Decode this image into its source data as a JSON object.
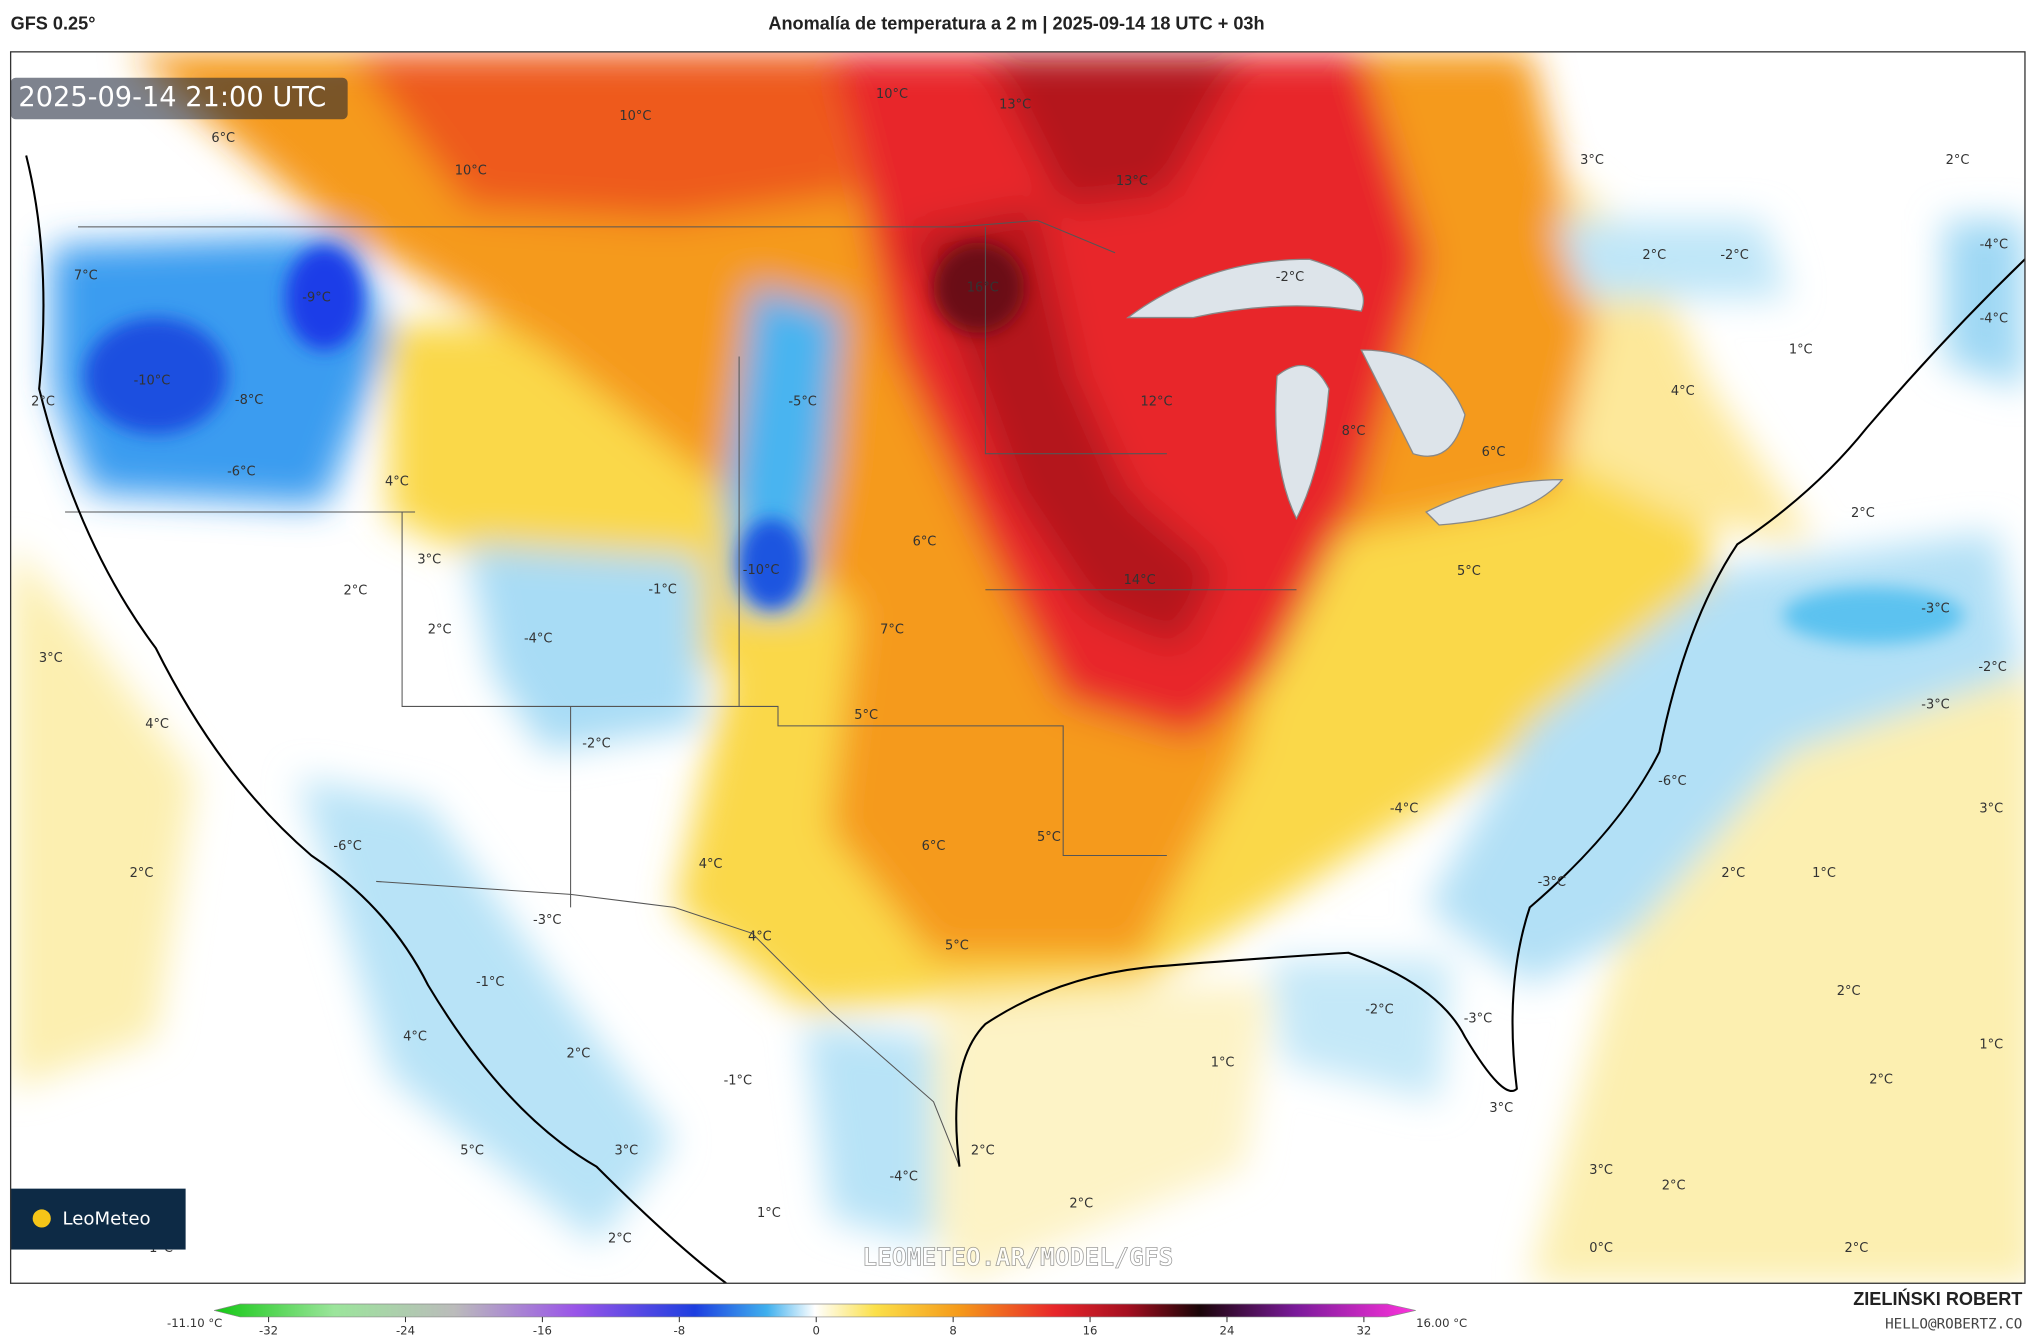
{
  "header": {
    "model": "GFS 0.25°",
    "title": "Anomalía de temperatura a 2 m | 2025-09-14 18 UTC + 03h"
  },
  "map": {
    "timestamp": "2025-09-14 21:00 UTC",
    "logo": "LeoMeteo",
    "watermark": "LEOMETEO.AR/MODEL/GFS",
    "labels": [
      "6°C",
      "10°C",
      "10°C",
      "10°C",
      "13°C",
      "13°C",
      "16°C",
      "-2°C",
      "3°C",
      "2°C",
      "2°C",
      "-2°C",
      "-4°C",
      "-4°C",
      "1°C",
      "4°C",
      "7°C",
      "-9°C",
      "-10°C",
      "-8°C",
      "-6°C",
      "2°C",
      "4°C",
      "-5°C",
      "12°C",
      "8°C",
      "6°C",
      "2°C",
      "6°C",
      "-10°C",
      "3°C",
      "2°C",
      "-1°C",
      "14°C",
      "5°C",
      "-3°C",
      "2°C",
      "-4°C",
      "7°C",
      "3°C",
      "-2°C",
      "-3°C",
      "5°C",
      "4°C",
      "-2°C",
      "-6°C",
      "-4°C",
      "3°C",
      "-6°C",
      "6°C",
      "5°C",
      "4°C",
      "2°C",
      "2°C",
      "1°C",
      "-3°C",
      "-3°C",
      "4°C",
      "5°C",
      "-1°C",
      "-2°C",
      "-3°C",
      "2°C",
      "4°C",
      "1°C",
      "2°C",
      "1°C",
      "-1°C",
      "2°C",
      "3°C",
      "5°C",
      "3°C",
      "2°C",
      "-4°C",
      "3°C",
      "2°C",
      "2°C",
      "1°C",
      "2°C",
      "1°C",
      "2°C",
      "0°C"
    ]
  },
  "colorbar": {
    "min_label": "-11.10 °C",
    "max_label": "16.00 °C",
    "range": [
      -32,
      32
    ],
    "ticks": [
      -32,
      -24,
      -16,
      -8,
      0,
      8,
      16,
      24,
      32
    ]
  },
  "credits": {
    "author": "ZIELIŃSKI ROBERT",
    "email": "HELLO@ROBERTZ.CO"
  }
}
